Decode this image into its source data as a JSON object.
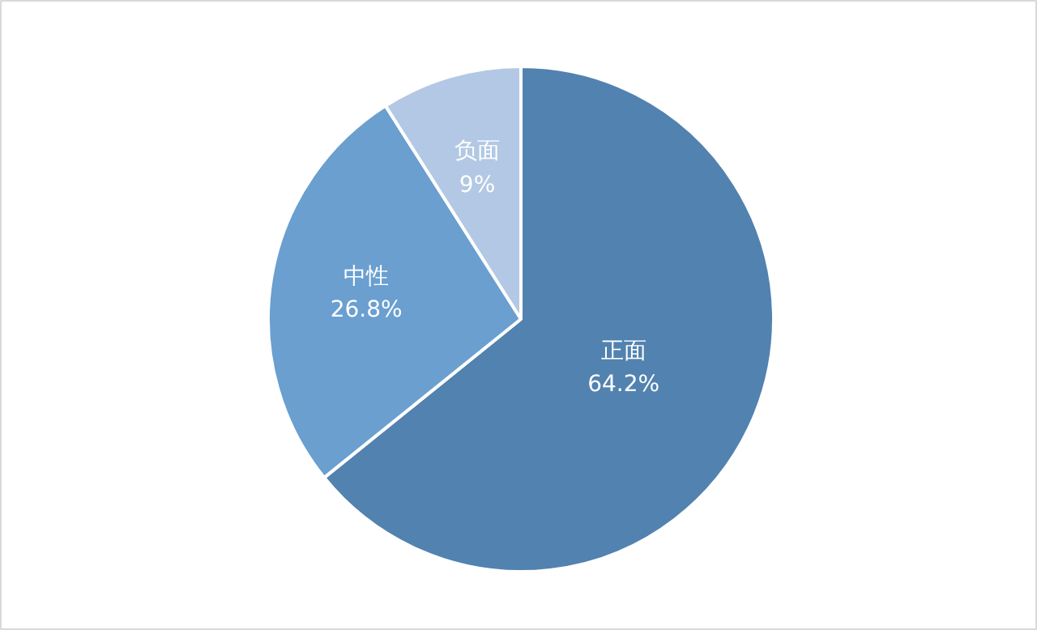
{
  "chart_data": {
    "type": "pie",
    "categories": [
      "正面",
      "中性",
      "负面"
    ],
    "values": [
      64.2,
      26.8,
      9
    ],
    "colors": [
      "#5282af",
      "#6a9fd0",
      "#b2c8e4"
    ],
    "value_labels": [
      "64.2%",
      "26.8%",
      "9%"
    ]
  }
}
